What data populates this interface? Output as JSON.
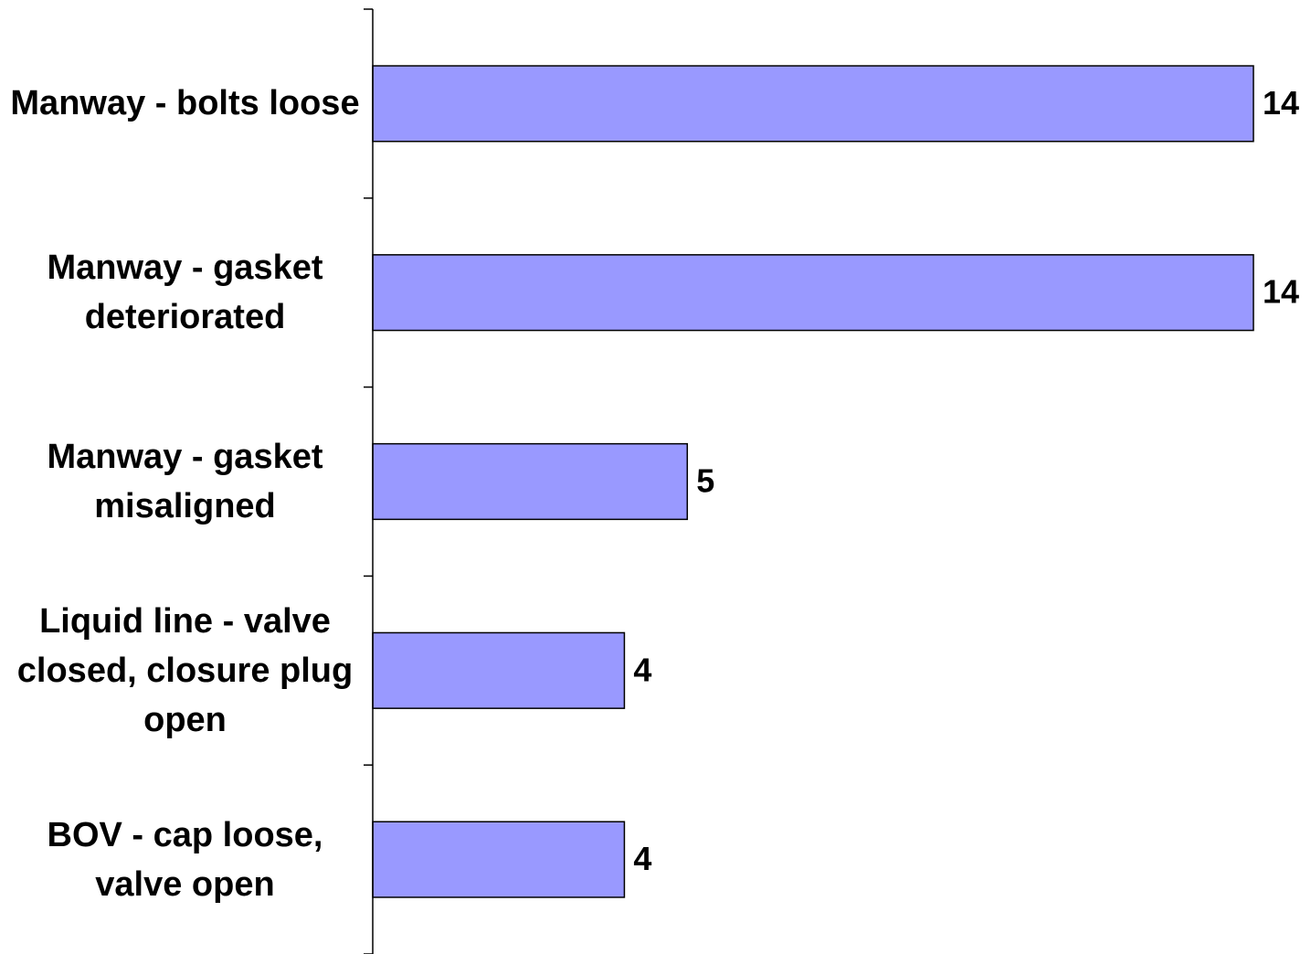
{
  "chart_data": {
    "type": "bar",
    "orientation": "horizontal",
    "categories": [
      "Manway - bolts loose",
      "Manway - gasket deteriorated",
      "Manway - gasket misaligned",
      "Liquid line - valve closed, closure plug open",
      "BOV - cap loose, valve open"
    ],
    "values": [
      14,
      14,
      5,
      4,
      4
    ],
    "color": "#9999ff",
    "xlim": [
      0,
      14
    ]
  }
}
